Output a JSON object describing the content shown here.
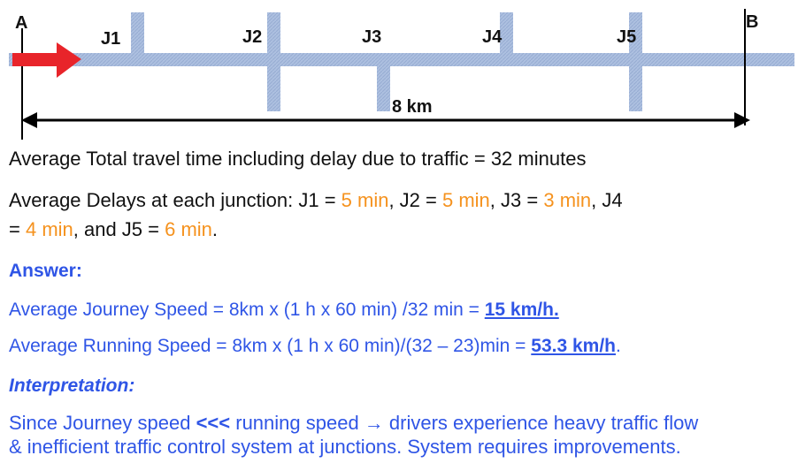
{
  "diagram": {
    "point_a": "A",
    "point_b": "B",
    "junctions": [
      "J1",
      "J2",
      "J3",
      "J4",
      "J5"
    ],
    "distance": "8 km"
  },
  "text": {
    "travel_time": "Average Total travel time including delay due to traffic = 32 minutes",
    "delays": {
      "prefix": "Average Delays at each junction: J1 = ",
      "d1": "5 min",
      "sep2": ", J2 = ",
      "d2": "5 min",
      "sep3": ", J3 = ",
      "d3": "3 min",
      "sep4": ", J4",
      "sep4b": "= ",
      "d4": "4 min",
      "sep5": ", and J5 = ",
      "d5": "6 min",
      "end": "."
    },
    "answer_heading": "Answer:",
    "journey": {
      "prefix": "Average Journey Speed = 8km x (1 h x 60 min) /32 min = ",
      "result": "15 km/h."
    },
    "running": {
      "prefix": "Average Running Speed = 8km x (1 h x 60 min)/(32 – 23)min = ",
      "result": "53.3 km/h",
      "end": "."
    },
    "interp_heading": "Interpretation:",
    "interp": {
      "prefix": "Since Journey speed ",
      "sym": "<<<",
      "mid": " running speed → drivers experience heavy traffic flow",
      "line2": "& inefficient traffic control system at junctions. System requires improvements."
    }
  }
}
